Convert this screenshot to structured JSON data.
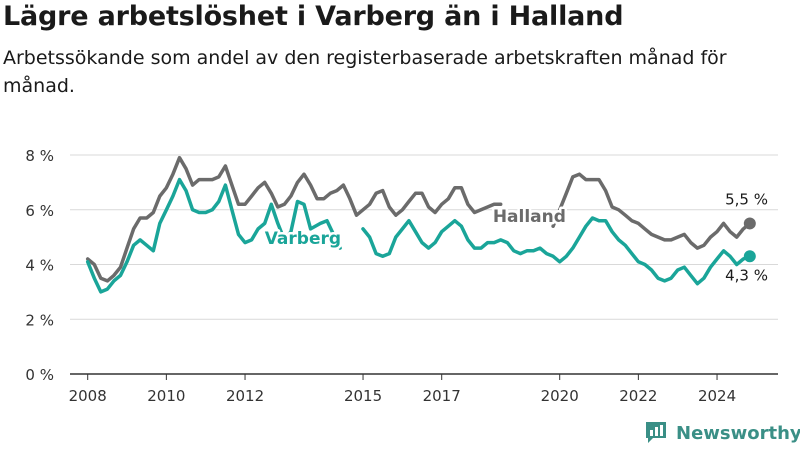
{
  "title": "Lägre arbetslöshet i Varberg än i Halland",
  "subtitle": "Arbetssökande som andel av den registerbaserade arbetskraften månad för månad.",
  "brand": {
    "name": "Newsworthy",
    "icon": "bar-chart-logo-icon",
    "color": "#3a8f86"
  },
  "chart_data": {
    "type": "line",
    "title": "Lägre arbetslöshet i Varberg än i Halland",
    "subtitle": "Arbetssökande som andel av den registerbaserade arbetskraften månad för månad.",
    "xlabel": "",
    "ylabel": "",
    "x_ticks": [
      2008,
      2010,
      2012,
      2015,
      2017,
      2020,
      2022,
      2024
    ],
    "x_tick_labels": [
      "2008",
      "2010",
      "2012",
      "2015",
      "2017",
      "2020",
      "2022",
      "2024"
    ],
    "y_ticks": [
      0,
      2,
      4,
      6,
      8
    ],
    "y_tick_labels": [
      "0 %",
      "2 %",
      "4 %",
      "6 %",
      "8 %"
    ],
    "ylim": [
      0,
      8
    ],
    "grid": true,
    "legend": "inline labels",
    "series": [
      {
        "name": "Halland",
        "color": "#6b6b6b",
        "end_label": "5,5 %",
        "points": [
          [
            "2008-01",
            4.2
          ],
          [
            "2008-03",
            4.0
          ],
          [
            "2008-05",
            3.5
          ],
          [
            "2008-07",
            3.4
          ],
          [
            "2008-09",
            3.6
          ],
          [
            "2008-11",
            3.9
          ],
          [
            "2009-01",
            4.6
          ],
          [
            "2009-03",
            5.3
          ],
          [
            "2009-05",
            5.7
          ],
          [
            "2009-07",
            5.7
          ],
          [
            "2009-09",
            5.9
          ],
          [
            "2009-11",
            6.5
          ],
          [
            "2010-01",
            6.8
          ],
          [
            "2010-03",
            7.3
          ],
          [
            "2010-05",
            7.9
          ],
          [
            "2010-07",
            7.5
          ],
          [
            "2010-09",
            6.9
          ],
          [
            "2010-11",
            7.1
          ],
          [
            "2011-01",
            7.1
          ],
          [
            "2011-03",
            7.1
          ],
          [
            "2011-05",
            7.2
          ],
          [
            "2011-07",
            7.6
          ],
          [
            "2011-09",
            6.9
          ],
          [
            "2011-11",
            6.2
          ],
          [
            "2012-01",
            6.2
          ],
          [
            "2012-03",
            6.5
          ],
          [
            "2012-05",
            6.8
          ],
          [
            "2012-07",
            7.0
          ],
          [
            "2012-09",
            6.6
          ],
          [
            "2012-11",
            6.1
          ],
          [
            "2013-01",
            6.2
          ],
          [
            "2013-03",
            6.5
          ],
          [
            "2013-05",
            7.0
          ],
          [
            "2013-07",
            7.3
          ],
          [
            "2013-09",
            6.9
          ],
          [
            "2013-11",
            6.4
          ],
          [
            "2014-01",
            6.4
          ],
          [
            "2014-03",
            6.6
          ],
          [
            "2014-05",
            6.7
          ],
          [
            "2014-07",
            6.9
          ],
          [
            "2014-09",
            6.4
          ],
          [
            "2014-11",
            5.8
          ],
          [
            "2015-01",
            6.0
          ],
          [
            "2015-03",
            6.2
          ],
          [
            "2015-05",
            6.6
          ],
          [
            "2015-07",
            6.7
          ],
          [
            "2015-09",
            6.1
          ],
          [
            "2015-11",
            5.8
          ],
          [
            "2016-01",
            6.0
          ],
          [
            "2016-03",
            6.3
          ],
          [
            "2016-05",
            6.6
          ],
          [
            "2016-07",
            6.6
          ],
          [
            "2016-09",
            6.1
          ],
          [
            "2016-11",
            5.9
          ],
          [
            "2017-01",
            6.2
          ],
          [
            "2017-03",
            6.4
          ],
          [
            "2017-05",
            6.8
          ],
          [
            "2017-07",
            6.8
          ],
          [
            "2017-09",
            6.2
          ],
          [
            "2017-11",
            5.9
          ],
          [
            "2018-01",
            6.0
          ],
          [
            "2018-03",
            6.1
          ],
          [
            "2018-05",
            6.2
          ],
          [
            "2018-07",
            6.2
          ],
          [
            "2019-11",
            5.4
          ],
          [
            "2020-01",
            6.0
          ],
          [
            "2020-03",
            6.6
          ],
          [
            "2020-05",
            7.2
          ],
          [
            "2020-07",
            7.3
          ],
          [
            "2020-09",
            7.1
          ],
          [
            "2020-11",
            7.1
          ],
          [
            "2021-01",
            7.1
          ],
          [
            "2021-03",
            6.7
          ],
          [
            "2021-05",
            6.1
          ],
          [
            "2021-07",
            6.0
          ],
          [
            "2021-09",
            5.8
          ],
          [
            "2021-11",
            5.6
          ],
          [
            "2022-01",
            5.5
          ],
          [
            "2022-03",
            5.3
          ],
          [
            "2022-05",
            5.1
          ],
          [
            "2022-07",
            5.0
          ],
          [
            "2022-09",
            4.9
          ],
          [
            "2022-11",
            4.9
          ],
          [
            "2023-01",
            5.0
          ],
          [
            "2023-03",
            5.1
          ],
          [
            "2023-05",
            4.8
          ],
          [
            "2023-07",
            4.6
          ],
          [
            "2023-09",
            4.7
          ],
          [
            "2023-11",
            5.0
          ],
          [
            "2024-01",
            5.2
          ],
          [
            "2024-03",
            5.5
          ],
          [
            "2024-05",
            5.2
          ],
          [
            "2024-07",
            5.0
          ],
          [
            "2024-09",
            5.3
          ],
          [
            "2024-11",
            5.5
          ]
        ]
      },
      {
        "name": "Varberg",
        "color": "#1aa599",
        "end_label": "4,3 %",
        "points": [
          [
            "2008-01",
            4.1
          ],
          [
            "2008-03",
            3.5
          ],
          [
            "2008-05",
            3.0
          ],
          [
            "2008-07",
            3.1
          ],
          [
            "2008-09",
            3.4
          ],
          [
            "2008-11",
            3.6
          ],
          [
            "2009-01",
            4.1
          ],
          [
            "2009-03",
            4.7
          ],
          [
            "2009-05",
            4.9
          ],
          [
            "2009-07",
            4.7
          ],
          [
            "2009-09",
            4.5
          ],
          [
            "2009-11",
            5.5
          ],
          [
            "2010-01",
            6.0
          ],
          [
            "2010-03",
            6.5
          ],
          [
            "2010-05",
            7.1
          ],
          [
            "2010-07",
            6.7
          ],
          [
            "2010-09",
            6.0
          ],
          [
            "2010-11",
            5.9
          ],
          [
            "2011-01",
            5.9
          ],
          [
            "2011-03",
            6.0
          ],
          [
            "2011-05",
            6.3
          ],
          [
            "2011-07",
            6.9
          ],
          [
            "2011-09",
            6.0
          ],
          [
            "2011-11",
            5.1
          ],
          [
            "2012-01",
            4.8
          ],
          [
            "2012-03",
            4.9
          ],
          [
            "2012-05",
            5.3
          ],
          [
            "2012-07",
            5.5
          ],
          [
            "2012-09",
            6.2
          ],
          [
            "2012-11",
            5.5
          ],
          [
            "2013-01",
            4.9
          ],
          [
            "2013-03",
            5.2
          ],
          [
            "2013-05",
            6.3
          ],
          [
            "2013-07",
            6.2
          ],
          [
            "2013-09",
            5.3
          ],
          [
            "2013-12",
            5.5
          ],
          [
            "2014-02",
            5.6
          ],
          [
            "2014-04",
            5.1
          ],
          [
            "2014-06",
            4.6
          ],
          [
            "2015-01",
            5.3
          ],
          [
            "2015-03",
            5.0
          ],
          [
            "2015-05",
            4.4
          ],
          [
            "2015-07",
            4.3
          ],
          [
            "2015-09",
            4.4
          ],
          [
            "2015-11",
            5.0
          ],
          [
            "2016-01",
            5.3
          ],
          [
            "2016-03",
            5.6
          ],
          [
            "2016-05",
            5.2
          ],
          [
            "2016-07",
            4.8
          ],
          [
            "2016-09",
            4.6
          ],
          [
            "2016-11",
            4.8
          ],
          [
            "2017-01",
            5.2
          ],
          [
            "2017-03",
            5.4
          ],
          [
            "2017-05",
            5.6
          ],
          [
            "2017-07",
            5.4
          ],
          [
            "2017-09",
            4.9
          ],
          [
            "2017-11",
            4.6
          ],
          [
            "2018-01",
            4.6
          ],
          [
            "2018-03",
            4.8
          ],
          [
            "2018-05",
            4.8
          ],
          [
            "2018-07",
            4.9
          ],
          [
            "2018-09",
            4.8
          ],
          [
            "2018-11",
            4.5
          ],
          [
            "2019-01",
            4.4
          ],
          [
            "2019-03",
            4.5
          ],
          [
            "2019-05",
            4.5
          ],
          [
            "2019-07",
            4.6
          ],
          [
            "2019-09",
            4.4
          ],
          [
            "2019-11",
            4.3
          ],
          [
            "2020-01",
            4.1
          ],
          [
            "2020-03",
            4.3
          ],
          [
            "2020-05",
            4.6
          ],
          [
            "2020-07",
            5.0
          ],
          [
            "2020-09",
            5.4
          ],
          [
            "2020-11",
            5.7
          ],
          [
            "2021-01",
            5.6
          ],
          [
            "2021-03",
            5.6
          ],
          [
            "2021-05",
            5.2
          ],
          [
            "2021-07",
            4.9
          ],
          [
            "2021-09",
            4.7
          ],
          [
            "2021-11",
            4.4
          ],
          [
            "2022-01",
            4.1
          ],
          [
            "2022-03",
            4.0
          ],
          [
            "2022-05",
            3.8
          ],
          [
            "2022-07",
            3.5
          ],
          [
            "2022-09",
            3.4
          ],
          [
            "2022-11",
            3.5
          ],
          [
            "2023-01",
            3.8
          ],
          [
            "2023-03",
            3.9
          ],
          [
            "2023-05",
            3.6
          ],
          [
            "2023-07",
            3.3
          ],
          [
            "2023-09",
            3.5
          ],
          [
            "2023-11",
            3.9
          ],
          [
            "2024-01",
            4.2
          ],
          [
            "2024-03",
            4.5
          ],
          [
            "2024-05",
            4.3
          ],
          [
            "2024-07",
            4.0
          ],
          [
            "2024-09",
            4.2
          ],
          [
            "2024-11",
            4.3
          ]
        ]
      }
    ]
  }
}
